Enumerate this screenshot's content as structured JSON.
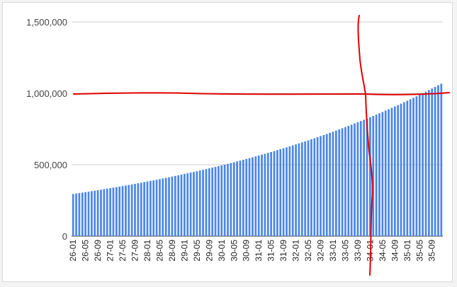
{
  "chart_data": {
    "type": "bar",
    "title": "",
    "xlabel": "",
    "ylabel": "",
    "ylim": [
      0,
      1500000
    ],
    "yticks": [
      0,
      500000,
      1000000,
      1500000
    ],
    "ytick_labels": [
      "0",
      "500,000",
      "1,000,000",
      "1,500,000"
    ],
    "grid": true,
    "legend": "none",
    "bar_color": "#4a86e8",
    "annotation_color": "#e00000",
    "x_tick_labels": [
      "26-01",
      "26-05",
      "26-09",
      "27-01",
      "27-05",
      "27-09",
      "28-01",
      "28-05",
      "28-09",
      "29-01",
      "29-05",
      "29-09",
      "30-01",
      "30-05",
      "30-09",
      "31-01",
      "31-05",
      "31-09",
      "32-01",
      "32-05",
      "32-09",
      "33-01",
      "33-05",
      "33-09",
      "34-01",
      "34-05",
      "34-09",
      "35-01",
      "35-05",
      "35-09"
    ],
    "categories": [
      "26-01",
      "26-02",
      "26-03",
      "26-04",
      "26-05",
      "26-06",
      "26-07",
      "26-08",
      "26-09",
      "26-10",
      "26-11",
      "26-12",
      "27-01",
      "27-02",
      "27-03",
      "27-04",
      "27-05",
      "27-06",
      "27-07",
      "27-08",
      "27-09",
      "27-10",
      "27-11",
      "27-12",
      "28-01",
      "28-02",
      "28-03",
      "28-04",
      "28-05",
      "28-06",
      "28-07",
      "28-08",
      "28-09",
      "28-10",
      "28-11",
      "28-12",
      "29-01",
      "29-02",
      "29-03",
      "29-04",
      "29-05",
      "29-06",
      "29-07",
      "29-08",
      "29-09",
      "29-10",
      "29-11",
      "29-12",
      "30-01",
      "30-02",
      "30-03",
      "30-04",
      "30-05",
      "30-06",
      "30-07",
      "30-08",
      "30-09",
      "30-10",
      "30-11",
      "30-12",
      "31-01",
      "31-02",
      "31-03",
      "31-04",
      "31-05",
      "31-06",
      "31-07",
      "31-08",
      "31-09",
      "31-10",
      "31-11",
      "31-12",
      "32-01",
      "32-02",
      "32-03",
      "32-04",
      "32-05",
      "32-06",
      "32-07",
      "32-08",
      "32-09",
      "32-10",
      "32-11",
      "32-12",
      "33-01",
      "33-02",
      "33-03",
      "33-04",
      "33-05",
      "33-06",
      "33-07",
      "33-08",
      "33-09",
      "33-10",
      "33-11",
      "33-12",
      "34-01",
      "34-02",
      "34-03",
      "34-04",
      "34-05",
      "34-06",
      "34-07",
      "34-08",
      "34-09",
      "34-10",
      "34-11",
      "34-12",
      "35-01",
      "35-02",
      "35-03",
      "35-04",
      "35-05",
      "35-06",
      "35-07",
      "35-08",
      "35-09",
      "35-10",
      "35-11",
      "35-12"
    ],
    "values": [
      295000,
      298200,
      301400,
      304700,
      308000,
      311400,
      314800,
      318200,
      321700,
      325200,
      328700,
      332300,
      335900,
      339600,
      343300,
      347000,
      350800,
      354600,
      358400,
      362300,
      366300,
      370200,
      374200,
      378300,
      382400,
      386600,
      390700,
      395000,
      399300,
      403600,
      408000,
      412400,
      416900,
      421400,
      426000,
      430600,
      435300,
      440000,
      444800,
      449600,
      454500,
      459500,
      464500,
      469500,
      474600,
      479800,
      485000,
      490300,
      495600,
      501000,
      506400,
      511900,
      517500,
      523100,
      528800,
      534600,
      540400,
      546200,
      552200,
      558200,
      564200,
      570400,
      576500,
      582800,
      589100,
      595500,
      602000,
      608500,
      615100,
      621800,
      628600,
      635400,
      642300,
      649300,
      656400,
      663500,
      670700,
      678000,
      685400,
      692800,
      700300,
      707900,
      715600,
      723400,
      731300,
      739200,
      747200,
      755400,
      763600,
      771900,
      780200,
      788700,
      797300,
      805900,
      814700,
      823600,
      832500,
      841600,
      850700,
      860000,
      869300,
      878800,
      888300,
      898000,
      907700,
      917600,
      927600,
      937600,
      947800,
      958100,
      968500,
      979100,
      989700,
      1000500,
      1011300,
      1022300,
      1033400,
      1044700,
      1056000,
      1067500
    ]
  }
}
